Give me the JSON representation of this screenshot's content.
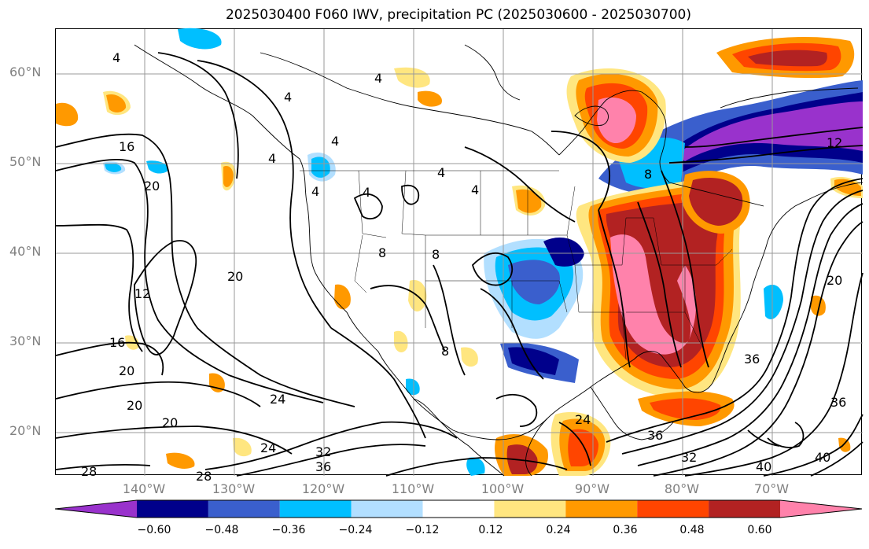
{
  "title": "2025030400 F060 IWV, precipitation PC (2025030600 - 2025030700)",
  "latitudes": [
    "60°N",
    "50°N",
    "40°N",
    "30°N",
    "20°N"
  ],
  "longitudes": [
    "140°W",
    "130°W",
    "120°W",
    "110°W",
    "100°W",
    "90°W",
    "80°W",
    "70°W"
  ],
  "colorbar": {
    "ticks": [
      "−0.60",
      "−0.48",
      "−0.36",
      "−0.24",
      "−0.12",
      "0.12",
      "0.24",
      "0.36",
      "0.48",
      "0.60"
    ],
    "colors": [
      "#9932cc",
      "#00008b",
      "#3a5fcd",
      "#00bfff",
      "#b2dfff",
      "#ffffff",
      "#ffe680",
      "#ff9900",
      "#ff4500",
      "#b22222",
      "#ff82ab"
    ]
  },
  "contour_labels": [
    "4",
    "4",
    "4",
    "4",
    "4",
    "4",
    "4",
    "4",
    "4",
    "8",
    "8",
    "8",
    "8",
    "12",
    "12",
    "16",
    "16",
    "20",
    "20",
    "20",
    "20",
    "20",
    "20",
    "24",
    "24",
    "24",
    "28",
    "28",
    "32",
    "32",
    "36",
    "36",
    "36",
    "36",
    "40",
    "40"
  ]
}
